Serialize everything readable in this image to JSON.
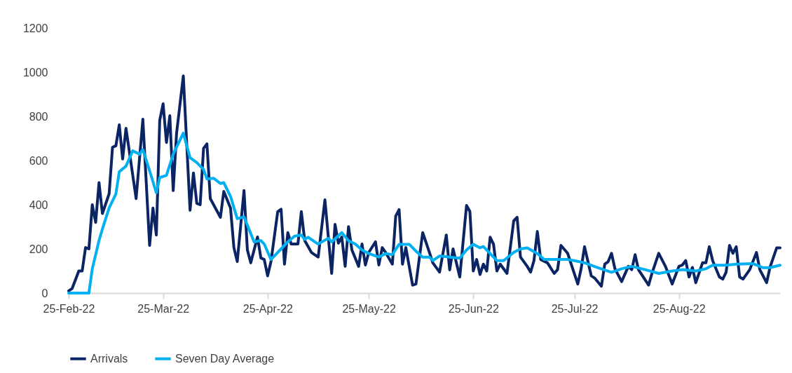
{
  "chart_data": {
    "type": "line",
    "legend": "bottom",
    "grid": false,
    "line_style": "solid",
    "marker": "none",
    "xlim": [
      "2022-02-25",
      "2022-09-24"
    ],
    "xticks": [
      {
        "value": "2022-02-25",
        "label": "25-Feb-22"
      },
      {
        "value": "2022-03-25",
        "label": "25-Mar-22"
      },
      {
        "value": "2022-04-25",
        "label": "25-Apr-22"
      },
      {
        "value": "2022-05-25",
        "label": "25-May-22"
      },
      {
        "value": "2022-06-25",
        "label": "25-Jun-22"
      },
      {
        "value": "2022-07-25",
        "label": "25-Jul-22"
      },
      {
        "value": "2022-08-25",
        "label": "25-Aug-22"
      }
    ],
    "ylim": [
      0,
      1200
    ],
    "yticks": [
      0,
      200,
      400,
      600,
      800,
      1000,
      1200
    ],
    "series": [
      {
        "name": "Arrivals",
        "color": "#0b2463",
        "x": [
          "2022-02-25",
          "2022-02-26",
          "2022-02-28",
          "2022-03-01",
          "2022-03-02",
          "2022-03-03",
          "2022-03-04",
          "2022-03-05",
          "2022-03-06",
          "2022-03-07",
          "2022-03-09",
          "2022-03-10",
          "2022-03-11",
          "2022-03-12",
          "2022-03-13",
          "2022-03-14",
          "2022-03-17",
          "2022-03-19",
          "2022-03-21",
          "2022-03-22",
          "2022-03-23",
          "2022-03-24",
          "2022-03-25",
          "2022-03-26",
          "2022-03-27",
          "2022-03-28",
          "2022-03-29",
          "2022-03-31",
          "2022-04-02",
          "2022-04-03",
          "2022-04-04",
          "2022-04-05",
          "2022-04-06",
          "2022-04-07",
          "2022-04-08",
          "2022-04-11",
          "2022-04-12",
          "2022-04-14",
          "2022-04-15",
          "2022-04-16",
          "2022-04-18",
          "2022-04-19",
          "2022-04-20",
          "2022-04-22",
          "2022-04-23",
          "2022-04-24",
          "2022-04-25",
          "2022-04-26",
          "2022-04-28",
          "2022-04-29",
          "2022-04-30",
          "2022-05-01",
          "2022-05-02",
          "2022-05-04",
          "2022-05-05",
          "2022-05-06",
          "2022-05-08",
          "2022-05-10",
          "2022-05-12",
          "2022-05-14",
          "2022-05-15",
          "2022-05-16",
          "2022-05-17",
          "2022-05-18",
          "2022-05-19",
          "2022-05-20",
          "2022-05-22",
          "2022-05-23",
          "2022-05-24",
          "2022-05-25",
          "2022-05-27",
          "2022-05-28",
          "2022-05-29",
          "2022-05-30",
          "2022-06-01",
          "2022-06-02",
          "2022-06-03",
          "2022-06-04",
          "2022-06-05",
          "2022-06-07",
          "2022-06-08",
          "2022-06-10",
          "2022-06-12",
          "2022-06-13",
          "2022-06-15",
          "2022-06-17",
          "2022-06-18",
          "2022-06-19",
          "2022-06-21",
          "2022-06-23",
          "2022-06-24",
          "2022-06-25",
          "2022-06-26",
          "2022-06-27",
          "2022-06-28",
          "2022-06-29",
          "2022-06-30",
          "2022-07-01",
          "2022-07-02",
          "2022-07-03",
          "2022-07-05",
          "2022-07-07",
          "2022-07-08",
          "2022-07-09",
          "2022-07-11",
          "2022-07-12",
          "2022-07-13",
          "2022-07-14",
          "2022-07-15",
          "2022-07-17",
          "2022-07-19",
          "2022-07-20",
          "2022-07-21",
          "2022-07-23",
          "2022-07-24",
          "2022-07-26",
          "2022-07-27",
          "2022-07-28",
          "2022-07-30",
          "2022-07-31",
          "2022-08-02",
          "2022-08-03",
          "2022-08-04",
          "2022-08-05",
          "2022-08-06",
          "2022-08-08",
          "2022-08-10",
          "2022-08-11",
          "2022-08-12",
          "2022-08-13",
          "2022-08-16",
          "2022-08-17",
          "2022-08-19",
          "2022-08-21",
          "2022-08-23",
          "2022-08-25",
          "2022-08-26",
          "2022-08-27",
          "2022-08-28",
          "2022-08-29",
          "2022-08-30",
          "2022-09-01",
          "2022-09-02",
          "2022-09-03",
          "2022-09-04",
          "2022-09-06",
          "2022-09-07",
          "2022-09-08",
          "2022-09-09",
          "2022-09-10",
          "2022-09-11",
          "2022-09-12",
          "2022-09-13",
          "2022-09-15",
          "2022-09-17",
          "2022-09-18",
          "2022-09-20",
          "2022-09-21",
          "2022-09-23",
          "2022-09-24"
        ],
        "values": [
          10,
          20,
          100,
          100,
          206,
          200,
          400,
          320,
          500,
          360,
          450,
          660,
          667,
          762,
          607,
          746,
          428,
          787,
          216,
          385,
          263,
          782,
          857,
          682,
          803,
          464,
          724,
          983,
          375,
          544,
          406,
          400,
          655,
          676,
          428,
          343,
          460,
          385,
          206,
          143,
          464,
          195,
          137,
          254,
          159,
          152,
          78,
          143,
          369,
          380,
          131,
          274,
          222,
          222,
          369,
          238,
          184,
          163,
          422,
          89,
          311,
          226,
          254,
          121,
          301,
          195,
          121,
          222,
          127,
          184,
          232,
          127,
          206,
          184,
          131,
          349,
          378,
          131,
          206,
          36,
          41,
          274,
          184,
          137,
          95,
          263,
          105,
          200,
          73,
          397,
          369,
          100,
          152,
          84,
          131,
          100,
          253,
          222,
          100,
          131,
          89,
          327,
          343,
          163,
          121,
          95,
          147,
          279,
          152,
          137,
          89,
          106,
          216,
          180,
          133,
          41,
          111,
          210,
          78,
          68,
          31,
          131,
          142,
          180,
          111,
          52,
          121,
          106,
          174,
          106,
          36,
          89,
          180,
          121,
          41,
          121,
          127,
          147,
          73,
          116,
          47,
          137,
          137,
          210,
          147,
          73,
          63,
          95,
          216,
          180,
          210,
          73,
          63,
          106,
          184,
          106,
          47,
          116,
          205,
          205
        ]
      },
      {
        "name": "Seven Day Average",
        "color": "#00b0f0",
        "x": [
          "2022-02-25",
          "2022-03-03",
          "2022-03-04",
          "2022-03-06",
          "2022-03-07",
          "2022-03-09",
          "2022-03-11",
          "2022-03-12",
          "2022-03-14",
          "2022-03-16",
          "2022-03-18",
          "2022-03-19",
          "2022-03-21",
          "2022-03-23",
          "2022-03-24",
          "2022-03-26",
          "2022-03-28",
          "2022-03-31",
          "2022-04-02",
          "2022-04-04",
          "2022-04-06",
          "2022-04-07",
          "2022-04-09",
          "2022-04-11",
          "2022-04-12",
          "2022-04-14",
          "2022-04-16",
          "2022-04-18",
          "2022-04-21",
          "2022-04-23",
          "2022-04-24",
          "2022-04-26",
          "2022-04-29",
          "2022-05-01",
          "2022-05-03",
          "2022-05-05",
          "2022-05-06",
          "2022-05-07",
          "2022-05-10",
          "2022-05-13",
          "2022-05-14",
          "2022-05-17",
          "2022-05-19",
          "2022-05-21",
          "2022-05-23",
          "2022-05-25",
          "2022-05-28",
          "2022-05-30",
          "2022-06-01",
          "2022-06-03",
          "2022-06-06",
          "2022-06-08",
          "2022-06-10",
          "2022-06-12",
          "2022-06-13",
          "2022-06-15",
          "2022-06-18",
          "2022-06-21",
          "2022-06-23",
          "2022-06-25",
          "2022-06-27",
          "2022-06-28",
          "2022-07-02",
          "2022-07-04",
          "2022-07-07",
          "2022-07-09",
          "2022-07-11",
          "2022-07-14",
          "2022-07-16",
          "2022-07-20",
          "2022-07-23",
          "2022-07-25",
          "2022-07-28",
          "2022-08-01",
          "2022-08-05",
          "2022-08-08",
          "2022-08-11",
          "2022-08-15",
          "2022-08-19",
          "2022-08-23",
          "2022-08-26",
          "2022-08-30",
          "2022-09-02",
          "2022-09-04",
          "2022-09-08",
          "2022-09-11",
          "2022-09-16",
          "2022-09-19",
          "2022-09-21",
          "2022-09-24"
        ],
        "values": [
          0,
          0,
          110,
          238,
          290,
          385,
          449,
          549,
          575,
          644,
          629,
          650,
          554,
          454,
          523,
          533,
          629,
          724,
          613,
          591,
          560,
          517,
          520,
          496,
          500,
          438,
          337,
          345,
          232,
          238,
          222,
          152,
          200,
          232,
          258,
          263,
          243,
          253,
          222,
          248,
          232,
          274,
          237,
          222,
          195,
          179,
          163,
          179,
          174,
          221,
          221,
          190,
          163,
          163,
          147,
          168,
          163,
          158,
          195,
          221,
          205,
          211,
          147,
          147,
          184,
          200,
          205,
          179,
          152,
          152,
          152,
          147,
          137,
          115,
          94,
          110,
          121,
          106,
          89,
          100,
          106,
          100,
          110,
          126,
          126,
          131,
          133,
          115,
          115,
          126
        ]
      }
    ]
  }
}
